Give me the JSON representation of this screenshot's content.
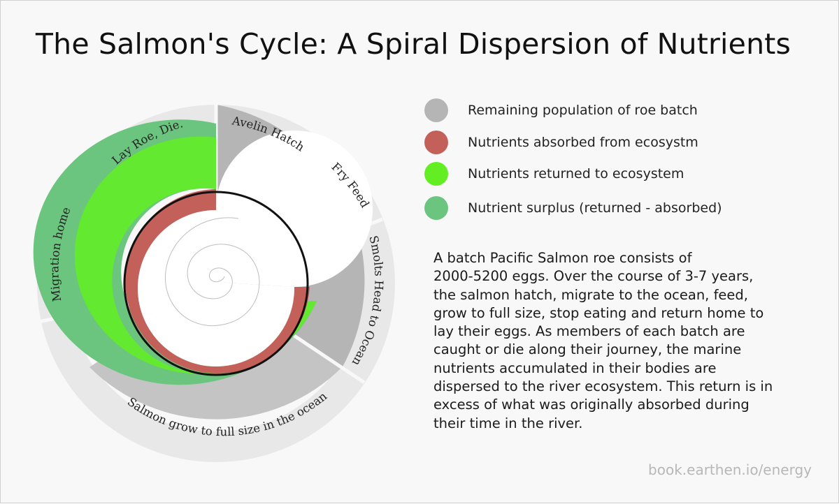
{
  "title": "The Salmon's Cycle: A Spiral Dispersion of Nutrients",
  "legend": [
    {
      "label": "Remaining population of roe batch",
      "color": "#b5b5b5"
    },
    {
      "label": "Nutrients absorbed from ecosystm",
      "color": "#c4605a"
    },
    {
      "label": "Nutrients returned to ecosystem",
      "color": "#62ee22"
    },
    {
      "label": "Nutrient surplus (returned - absorbed)",
      "color": "#6cc57f"
    }
  ],
  "stages": [
    {
      "label": "Avelin Hatch"
    },
    {
      "label": "Fry Feed"
    },
    {
      "label": "Smolts Head to Ocean"
    },
    {
      "label": "Salmon grow to full size in the ocean"
    },
    {
      "label": "Migration home"
    },
    {
      "label": "Lay Roe, Die."
    }
  ],
  "description_lines": [
    "A batch Pacific Salmon roe consists of",
    "2000-5200 eggs.   Over the course of 3-7 years,",
    "the salmon hatch, migrate to the ocean, feed,",
    "grow to full size, stop eating and return home to",
    "lay their eggs.  As members of each batch are",
    "caught or die along their journey, the marine",
    "nutrients accumulated in their bodies are",
    "dispersed to the river ecosystem.  This return is in",
    "excess of what was originally absorbed during",
    "their time in the river."
  ],
  "footer": "book.earthen.io/energy"
}
